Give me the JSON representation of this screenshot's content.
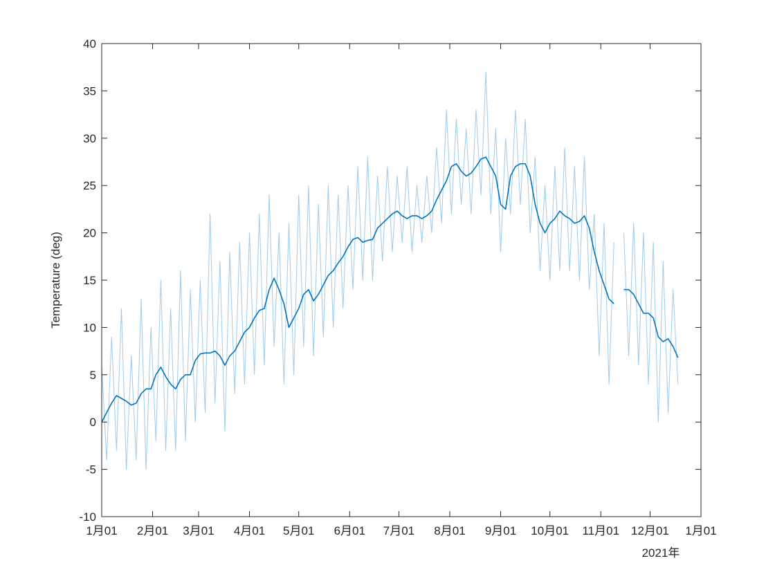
{
  "chart_data": {
    "type": "line",
    "ylabel": "Temperature (deg)",
    "x_secondary_label": "2021年",
    "x": [
      "2021-01-01",
      "2021-01-04",
      "2021-01-07",
      "2021-01-10",
      "2021-01-13",
      "2021-01-16",
      "2021-01-19",
      "2021-01-22",
      "2021-01-25",
      "2021-01-28",
      "2021-01-31",
      "2021-02-03",
      "2021-02-06",
      "2021-02-09",
      "2021-02-12",
      "2021-02-15",
      "2021-02-18",
      "2021-02-21",
      "2021-02-24",
      "2021-02-27",
      "2021-03-02",
      "2021-03-05",
      "2021-03-08",
      "2021-03-11",
      "2021-03-14",
      "2021-03-17",
      "2021-03-20",
      "2021-03-23",
      "2021-03-26",
      "2021-03-29",
      "2021-04-01",
      "2021-04-04",
      "2021-04-07",
      "2021-04-10",
      "2021-04-13",
      "2021-04-16",
      "2021-04-19",
      "2021-04-22",
      "2021-04-25",
      "2021-04-28",
      "2021-05-01",
      "2021-05-04",
      "2021-05-07",
      "2021-05-10",
      "2021-05-13",
      "2021-05-16",
      "2021-05-19",
      "2021-05-22",
      "2021-05-25",
      "2021-05-28",
      "2021-05-31",
      "2021-06-03",
      "2021-06-06",
      "2021-06-09",
      "2021-06-12",
      "2021-06-15",
      "2021-06-18",
      "2021-06-21",
      "2021-06-24",
      "2021-06-27",
      "2021-06-30",
      "2021-07-03",
      "2021-07-06",
      "2021-07-09",
      "2021-07-12",
      "2021-07-15",
      "2021-07-18",
      "2021-07-21",
      "2021-07-24",
      "2021-07-27",
      "2021-07-30",
      "2021-08-02",
      "2021-08-05",
      "2021-08-08",
      "2021-08-11",
      "2021-08-14",
      "2021-08-17",
      "2021-08-20",
      "2021-08-23",
      "2021-08-26",
      "2021-08-29",
      "2021-09-01",
      "2021-09-04",
      "2021-09-07",
      "2021-09-10",
      "2021-09-13",
      "2021-09-16",
      "2021-09-19",
      "2021-09-22",
      "2021-09-25",
      "2021-09-28",
      "2021-10-01",
      "2021-10-04",
      "2021-10-07",
      "2021-10-10",
      "2021-10-13",
      "2021-10-16",
      "2021-10-19",
      "2021-10-22",
      "2021-10-25",
      "2021-10-28",
      "2021-10-31",
      "2021-11-03",
      "2021-11-06",
      "2021-11-09",
      "2021-11-12",
      "2021-11-15",
      "2021-11-18",
      "2021-11-21",
      "2021-11-24",
      "2021-11-27",
      "2021-11-30",
      "2021-12-03",
      "2021-12-06",
      "2021-12-09",
      "2021-12-12",
      "2021-12-15",
      "2021-12-18"
    ],
    "series": [
      {
        "color": "#9fcbe8",
        "width": 1,
        "values": [
          6,
          -4,
          9,
          -3,
          12,
          -5,
          7,
          -4,
          13,
          -5,
          10,
          -2,
          15,
          -3,
          12,
          -3,
          16,
          -2,
          14,
          0,
          15,
          1,
          22,
          2,
          17,
          -1,
          18,
          3,
          19,
          4,
          20,
          5,
          22,
          6,
          24,
          8,
          20,
          4,
          21,
          5,
          24,
          8,
          25,
          7,
          23,
          9,
          25,
          10,
          24,
          12,
          25,
          14,
          27,
          15,
          28,
          15,
          26,
          17,
          27,
          18,
          26,
          19,
          27,
          18,
          25,
          19,
          26,
          20,
          29,
          21,
          33,
          22,
          32,
          23,
          31,
          22,
          33,
          24,
          37,
          22,
          31,
          18,
          30,
          22,
          33,
          23,
          32,
          20,
          28,
          16,
          25,
          15,
          27,
          16,
          29,
          16,
          27,
          15,
          28,
          14,
          22,
          7,
          21,
          4,
          19,
          null,
          20,
          7,
          21,
          6,
          20,
          4,
          19,
          0,
          17,
          1,
          14,
          4
        ]
      },
      {
        "color": "#0072bd",
        "width": 1.6,
        "values": [
          0,
          1,
          2,
          2.8,
          2.5,
          2.2,
          1.8,
          2,
          3,
          3.5,
          3.5,
          5,
          5.8,
          4.8,
          4,
          3.5,
          4.5,
          5,
          5,
          6.5,
          7.2,
          7.3,
          7.3,
          7.5,
          7,
          6,
          7,
          7.5,
          8.5,
          9.5,
          10,
          11,
          11.8,
          12,
          14,
          15.2,
          14,
          12.5,
          10,
          11,
          12,
          13.5,
          14,
          12.8,
          13.5,
          14.5,
          15.5,
          16,
          16.8,
          17.5,
          18.5,
          19.3,
          19.5,
          19,
          19.2,
          19.3,
          20.5,
          21,
          21.5,
          22,
          22.3,
          21.8,
          21.5,
          21.8,
          21.8,
          21.5,
          21.8,
          22.3,
          23.5,
          24.5,
          25.5,
          27,
          27.3,
          26.5,
          26,
          26.3,
          27,
          27.8,
          28,
          27,
          26,
          23,
          22.5,
          26,
          27,
          27.3,
          27.3,
          26,
          23,
          21,
          20,
          21,
          21.5,
          22.3,
          21.8,
          21.5,
          21,
          21.2,
          21.8,
          20.5,
          18,
          16,
          14.5,
          13,
          12.5,
          null,
          14,
          14,
          13.5,
          12.5,
          11.5,
          11.5,
          11,
          9,
          8.5,
          8.8,
          8,
          6.8
        ]
      }
    ],
    "xlim": [
      "2021-01-01",
      "2022-01-01"
    ],
    "xticks": [
      {
        "value": "2021-01-01",
        "label": "1月01"
      },
      {
        "value": "2021-02-01",
        "label": "2月01"
      },
      {
        "value": "2021-03-01",
        "label": "3月01"
      },
      {
        "value": "2021-04-01",
        "label": "4月01"
      },
      {
        "value": "2021-05-01",
        "label": "5月01"
      },
      {
        "value": "2021-06-01",
        "label": "6月01"
      },
      {
        "value": "2021-07-01",
        "label": "7月01"
      },
      {
        "value": "2021-08-01",
        "label": "8月01"
      },
      {
        "value": "2021-09-01",
        "label": "9月01"
      },
      {
        "value": "2021-10-01",
        "label": "10月01"
      },
      {
        "value": "2021-11-01",
        "label": "11月01"
      },
      {
        "value": "2021-12-01",
        "label": "12月01"
      },
      {
        "value": "2022-01-01",
        "label": "1月01"
      }
    ],
    "ylim": [
      -10,
      40
    ],
    "yticks": [
      -10,
      -5,
      0,
      5,
      10,
      15,
      20,
      25,
      30,
      35,
      40
    ],
    "grid": false
  }
}
